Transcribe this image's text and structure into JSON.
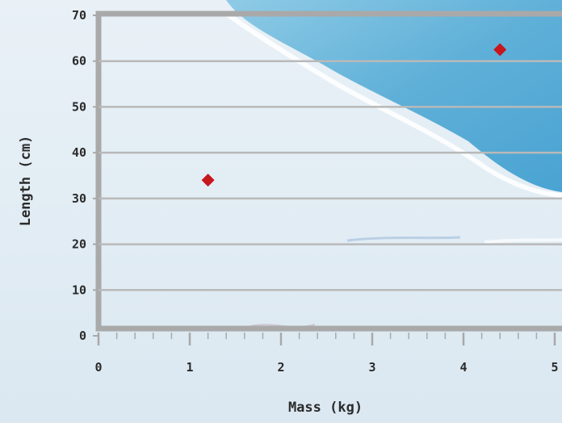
{
  "chart_data": {
    "type": "scatter",
    "xlabel": "Mass (kg)",
    "ylabel": "Length (cm)",
    "xlim": [
      0,
      5
    ],
    "ylim": [
      0,
      70
    ],
    "xticks": [
      "0",
      "1",
      "2",
      "3",
      "4",
      "5"
    ],
    "yticks": [
      "0",
      "10",
      "20",
      "30",
      "40",
      "50",
      "60",
      "70"
    ],
    "grid": true,
    "points": [
      {
        "x": 1.2,
        "y": 34
      },
      {
        "x": 4.4,
        "y": 62.5
      }
    ],
    "colors": {
      "marker": "#c8161d",
      "frame": "#a9a9a9",
      "grid": "#b9b9b9",
      "ice": "#e8f0f6",
      "water": "#6fb5d9"
    }
  }
}
